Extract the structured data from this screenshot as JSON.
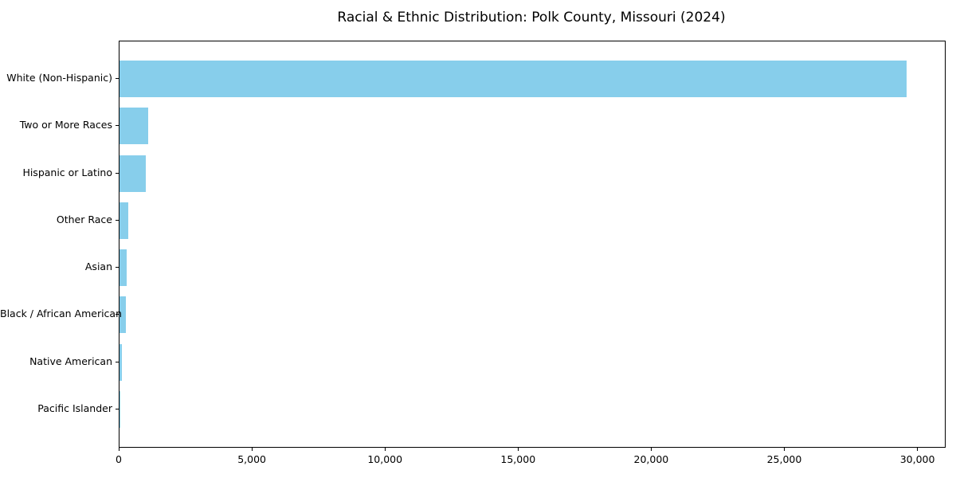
{
  "chart_data": {
    "type": "bar",
    "orientation": "horizontal",
    "title": "Racial & Ethnic Distribution: Polk County, Missouri (2024)",
    "categories": [
      "White (Non-Hispanic)",
      "Two or More Races",
      "Hispanic or Latino",
      "Other Race",
      "Asian",
      "Black / African American",
      "Native American",
      "Pacific Islander"
    ],
    "values": [
      29570,
      1080,
      990,
      330,
      280,
      240,
      90,
      15
    ],
    "xlabel": "",
    "ylabel": "",
    "xlim": [
      0,
      31000
    ],
    "x_ticks": [
      0,
      5000,
      10000,
      15000,
      20000,
      25000,
      30000
    ],
    "x_tick_labels": [
      "0",
      "5,000",
      "10,000",
      "15,000",
      "20,000",
      "25,000",
      "30,000"
    ],
    "bar_color": "#87CEEB",
    "background_color": "#ffffff",
    "spine_color": "#000000",
    "grid": false,
    "legend": null
  }
}
